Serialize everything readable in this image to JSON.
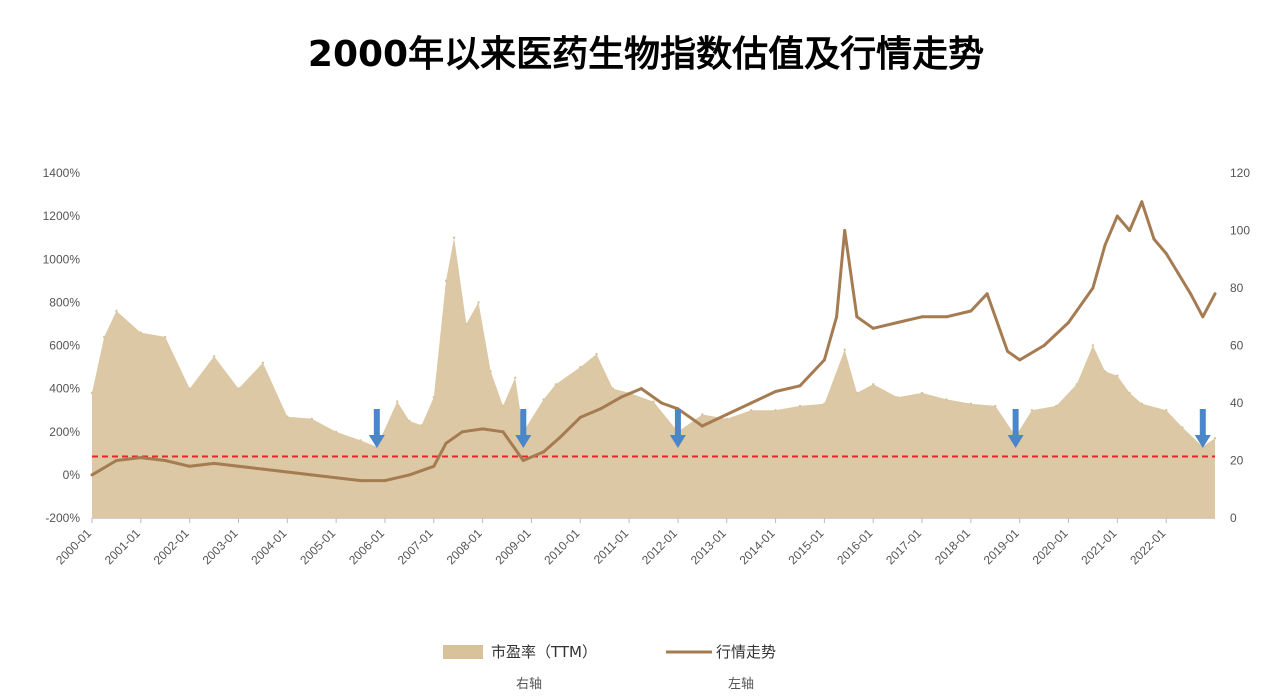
{
  "chart_data": {
    "type": "area",
    "title": "2000年以来医药生物指数估值及行情走势",
    "x_tick_labels": [
      "2000-01",
      "2001-01",
      "2002-01",
      "2003-01",
      "2004-01",
      "2005-01",
      "2006-01",
      "2007-01",
      "2008-01",
      "2009-01",
      "2010-01",
      "2011-01",
      "2012-01",
      "2013-01",
      "2014-01",
      "2015-01",
      "2016-01",
      "2017-01",
      "2018-01",
      "2019-01",
      "2020-01",
      "2021-01",
      "2022-01"
    ],
    "y_left": {
      "ticks": [
        "-200%",
        "0%",
        "200%",
        "400%",
        "600%",
        "800%",
        "1000%",
        "1200%",
        "1400%"
      ],
      "ylim": [
        -200,
        1400
      ]
    },
    "y_right": {
      "ticks": [
        "0",
        "20",
        "40",
        "60",
        "80",
        "100",
        "120"
      ],
      "ylim": [
        0,
        120
      ]
    },
    "reference_line": {
      "left_axis_value": 85,
      "style": "dashed",
      "color": "#e8262b"
    },
    "legend": [
      {
        "label": "市盈率（TTM）",
        "sublabel": "右轴",
        "kind": "area",
        "color": "#d8c29a"
      },
      {
        "label": "行情走势",
        "sublabel": "左轴",
        "kind": "line",
        "color": "#a57c52"
      }
    ],
    "arrow_markers": [
      "2005-11",
      "2008-11",
      "2012-01",
      "2018-12",
      "2022-10"
    ],
    "series": [
      {
        "name": "市盈率（TTM）",
        "axis": "left",
        "kind": "area",
        "x": [
          "2000-01",
          "2000-04",
          "2000-07",
          "2001-01",
          "2001-07",
          "2002-01",
          "2002-07",
          "2003-01",
          "2003-07",
          "2004-01",
          "2004-07",
          "2005-01",
          "2005-07",
          "2005-11",
          "2006-04",
          "2006-07",
          "2006-10",
          "2007-01",
          "2007-04",
          "2007-06",
          "2007-09",
          "2007-12",
          "2008-03",
          "2008-06",
          "2008-09",
          "2008-11",
          "2009-04",
          "2009-07",
          "2010-01",
          "2010-05",
          "2010-09",
          "2011-01",
          "2011-07",
          "2012-01",
          "2012-07",
          "2013-01",
          "2013-07",
          "2014-01",
          "2014-07",
          "2015-01",
          "2015-06",
          "2015-09",
          "2016-01",
          "2016-07",
          "2017-01",
          "2017-07",
          "2018-01",
          "2018-07",
          "2018-12",
          "2019-04",
          "2019-10",
          "2020-03",
          "2020-07",
          "2020-10",
          "2021-01",
          "2021-04",
          "2021-07",
          "2022-01",
          "2022-05",
          "2022-10",
          "2023-01"
        ],
        "values": [
          380,
          640,
          760,
          660,
          640,
          400,
          550,
          400,
          520,
          270,
          260,
          200,
          160,
          130,
          340,
          250,
          230,
          360,
          900,
          1100,
          700,
          800,
          480,
          320,
          450,
          200,
          350,
          420,
          500,
          560,
          400,
          380,
          340,
          200,
          280,
          260,
          300,
          300,
          320,
          330,
          580,
          380,
          420,
          360,
          380,
          350,
          330,
          320,
          180,
          300,
          320,
          420,
          600,
          480,
          460,
          380,
          330,
          300,
          220,
          130,
          170
        ]
      },
      {
        "name": "行情走势",
        "axis": "right",
        "kind": "line",
        "x": [
          "2000-01",
          "2000-07",
          "2001-01",
          "2001-07",
          "2002-01",
          "2002-07",
          "2003-01",
          "2003-07",
          "2004-01",
          "2004-07",
          "2005-01",
          "2005-07",
          "2006-01",
          "2006-07",
          "2007-01",
          "2007-04",
          "2007-08",
          "2008-01",
          "2008-06",
          "2008-11",
          "2009-04",
          "2009-08",
          "2010-01",
          "2010-06",
          "2010-11",
          "2011-04",
          "2011-09",
          "2012-01",
          "2012-07",
          "2013-01",
          "2013-07",
          "2014-01",
          "2014-07",
          "2015-01",
          "2015-04",
          "2015-06",
          "2015-09",
          "2016-01",
          "2016-07",
          "2017-01",
          "2017-07",
          "2018-01",
          "2018-05",
          "2018-10",
          "2019-01",
          "2019-07",
          "2020-01",
          "2020-07",
          "2020-10",
          "2021-01",
          "2021-04",
          "2021-07",
          "2021-10",
          "2022-01",
          "2022-04",
          "2022-07",
          "2022-10",
          "2023-01"
        ],
        "values": [
          15,
          20,
          21,
          20,
          18,
          19,
          18,
          17,
          16,
          15,
          14,
          13,
          13,
          15,
          18,
          26,
          30,
          31,
          30,
          20,
          23,
          28,
          35,
          38,
          42,
          45,
          40,
          38,
          32,
          36,
          40,
          44,
          46,
          55,
          70,
          100,
          70,
          66,
          68,
          70,
          70,
          72,
          78,
          58,
          55,
          60,
          68,
          80,
          95,
          105,
          100,
          110,
          97,
          92,
          85,
          78,
          70,
          78
        ]
      }
    ]
  }
}
